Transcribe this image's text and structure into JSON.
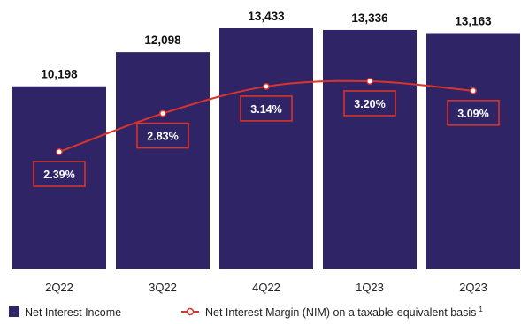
{
  "chart_data": {
    "type": "bar",
    "categories": [
      "2Q22",
      "3Q22",
      "4Q22",
      "1Q23",
      "2Q23"
    ],
    "series": [
      {
        "name": "Net Interest Income",
        "type": "bar",
        "values": [
          10198,
          12098,
          13433,
          13336,
          13163
        ],
        "value_labels": [
          "10,198",
          "12,098",
          "13,433",
          "13,336",
          "13,163"
        ],
        "color": "#2e2466"
      },
      {
        "name": "Net Interest Margin (NIM) on a taxable-equivalent basis",
        "footnote": "1",
        "type": "line",
        "values": [
          2.39,
          2.83,
          3.14,
          3.2,
          3.09
        ],
        "value_labels": [
          "2.39%",
          "2.83%",
          "3.14%",
          "3.20%",
          "3.09%"
        ],
        "color": "#d9342b"
      }
    ],
    "legend_position": "bottom-left",
    "grid": false,
    "colors": {
      "bar": "#2e2466",
      "line": "#d9342b",
      "label_box": "#d9342b"
    }
  }
}
